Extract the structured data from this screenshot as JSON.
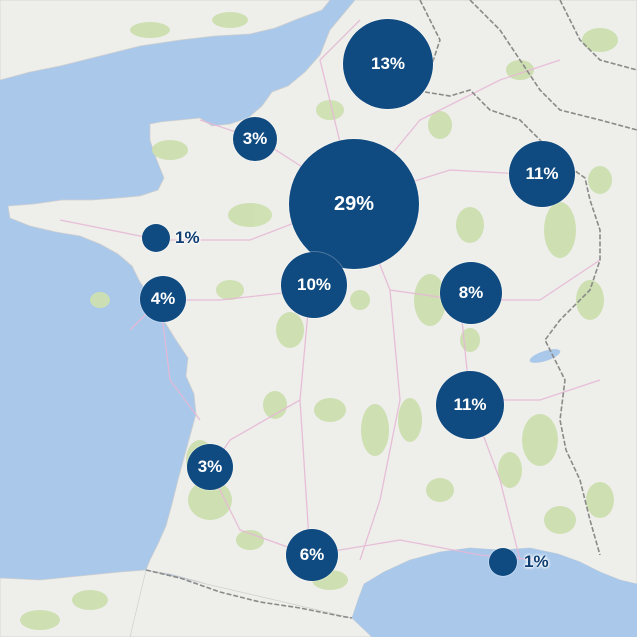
{
  "map": {
    "colors": {
      "sea": "#a9c8ea",
      "land": "#eeeeea",
      "forest": "#cddfb0",
      "border": "#8a8a8a",
      "road": "#e6b9d6",
      "bubble": "#0f4a80",
      "label_inside": "#ffffff",
      "label_outside": "#0f3f72"
    },
    "bubbles": [
      {
        "id": "north",
        "value_pct": 13,
        "label": "13%"
      },
      {
        "id": "normandy",
        "value_pct": 3,
        "label": "3%"
      },
      {
        "id": "paris",
        "value_pct": 29,
        "label": "29%"
      },
      {
        "id": "east",
        "value_pct": 11,
        "label": "11%"
      },
      {
        "id": "brittany",
        "value_pct": 1,
        "label": "1%"
      },
      {
        "id": "loire",
        "value_pct": 4,
        "label": "4%"
      },
      {
        "id": "centre",
        "value_pct": 10,
        "label": "10%"
      },
      {
        "id": "burgundy",
        "value_pct": 8,
        "label": "8%"
      },
      {
        "id": "rhone",
        "value_pct": 11,
        "label": "11%"
      },
      {
        "id": "bordeaux",
        "value_pct": 3,
        "label": "3%"
      },
      {
        "id": "toulouse",
        "value_pct": 6,
        "label": "6%"
      },
      {
        "id": "provence",
        "value_pct": 1,
        "label": "1%"
      }
    ]
  }
}
